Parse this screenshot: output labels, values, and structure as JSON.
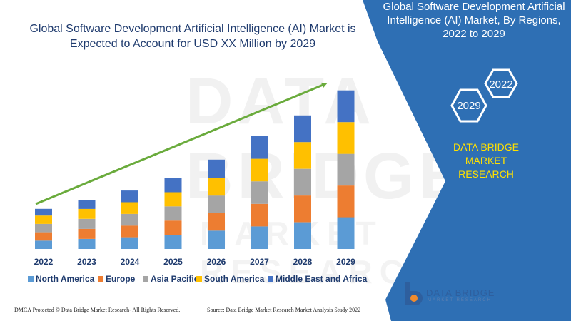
{
  "header": {
    "title_line1": "Global Software Development Artificial Intelligence (AI) Market is",
    "title_line2": "Expected to Account for USD XX Million by 2029"
  },
  "side_panel": {
    "title_line1": "Global Software Development Artificial",
    "title_line2": "Intelligence (AI) Market, By Regions,",
    "title_line3": "2022 to 2029",
    "hex_back_label": "2022",
    "hex_front_label": "2029",
    "brand_line1": "DATA BRIDGE MARKET",
    "brand_line2": "RESEARCH",
    "panel_color": "#2e6fb4",
    "brand_text_color": "#ffe000"
  },
  "logo": {
    "name": "DATA BRIDGE",
    "tagline": "MARKET RESEARCH"
  },
  "footer": {
    "left": "DMCA Protected © Data Bridge Market Research- All Rights Reserved.",
    "right": "Source: Data Bridge Market Research Market Analysis Study 2022"
  },
  "watermark": {
    "text": "DATA BRIDGE",
    "sub": "MARKET RESEARCH"
  },
  "chart_data": {
    "type": "bar",
    "stacked": true,
    "categories": [
      "2022",
      "2023",
      "2024",
      "2025",
      "2026",
      "2027",
      "2028",
      "2029"
    ],
    "series": [
      {
        "name": "North America",
        "color": "#5b9bd5",
        "values": [
          10,
          12,
          14,
          17,
          22,
          27,
          32,
          38
        ]
      },
      {
        "name": "Europe",
        "color": "#ed7d31",
        "values": [
          10,
          12,
          14,
          17,
          21,
          27,
          32,
          38
        ]
      },
      {
        "name": "Asia Pacific",
        "color": "#a5a5a5",
        "values": [
          10,
          12,
          14,
          17,
          21,
          27,
          32,
          38
        ]
      },
      {
        "name": "South America",
        "color": "#ffc000",
        "values": [
          10,
          12,
          14,
          17,
          21,
          27,
          32,
          38
        ]
      },
      {
        "name": "Middle East and Africa",
        "color": "#4472c4",
        "values": [
          8,
          11,
          14,
          17,
          22,
          27,
          32,
          38
        ]
      }
    ],
    "title": "",
    "xlabel": "",
    "ylabel": "",
    "ylim": [
      0,
      200
    ],
    "grid": false,
    "legend": "bottom",
    "trend_arrow": true,
    "trend_color": "#6aab3c"
  }
}
